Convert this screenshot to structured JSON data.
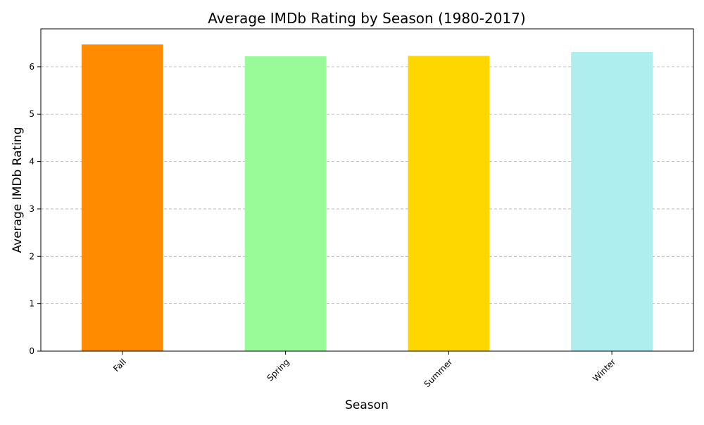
{
  "chart_data": {
    "type": "bar",
    "title": "Average IMDb Rating by Season (1980-2017)",
    "xlabel": "Season",
    "ylabel": "Average IMDb Rating",
    "categories": [
      "Fall",
      "Spring",
      "Summer",
      "Winter"
    ],
    "values": [
      6.47,
      6.22,
      6.23,
      6.31
    ],
    "colors": [
      "#ff8c00",
      "#98fb98",
      "#ffd700",
      "#afeeee"
    ],
    "ylim": [
      0,
      6.8
    ],
    "yticks": [
      "0",
      "1",
      "2",
      "3",
      "4",
      "5",
      "6"
    ],
    "grid": "y-dashed",
    "legend": "none"
  }
}
